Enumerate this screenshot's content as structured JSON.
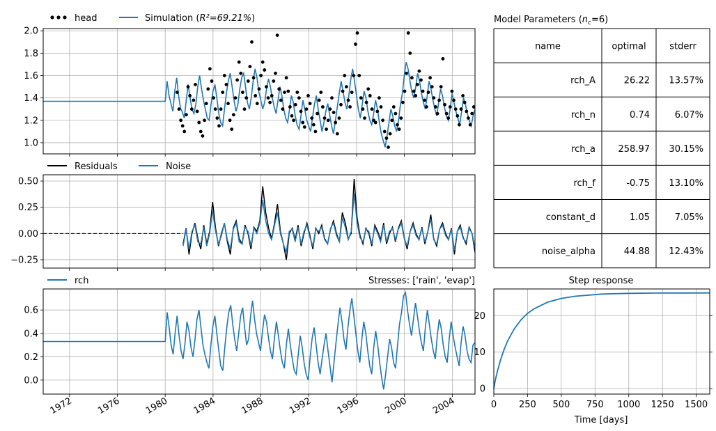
{
  "chart_data": [
    {
      "id": "head_panel",
      "type": "line",
      "legend": [
        {
          "label": "head",
          "style": "dots",
          "color": "#000000"
        },
        {
          "label_prefix": "Simulation (",
          "label_math": "R²=69.21%",
          "label_suffix": ")",
          "style": "line",
          "color": "#1f77b4"
        }
      ],
      "legend_placement": "top-left (outside)",
      "xlim": [
        1969.8,
        2005.9
      ],
      "ylim": [
        0.9,
        2.02
      ],
      "yticks": [
        1.0,
        1.2,
        1.4,
        1.6,
        1.8,
        2.0
      ],
      "ytick_labels": [
        "1.0",
        "1.2",
        "1.4",
        "1.6",
        "1.8",
        "2.0"
      ],
      "grid": true,
      "series": [
        {
          "name": "Simulation",
          "color": "#1f77b4",
          "kind": "line",
          "flat_start": [
            1969.8,
            1980.0
          ],
          "flat_value": 1.37,
          "values_x_start": 1980.0,
          "values_x_end": 2005.9,
          "values": [
            1.37,
            1.55,
            1.42,
            1.35,
            1.28,
            1.46,
            1.58,
            1.42,
            1.31,
            1.27,
            1.22,
            1.38,
            1.52,
            1.4,
            1.3,
            1.26,
            1.34,
            1.5,
            1.6,
            1.48,
            1.38,
            1.3,
            1.22,
            1.2,
            1.35,
            1.46,
            1.52,
            1.4,
            1.26,
            1.18,
            1.15,
            1.3,
            1.44,
            1.55,
            1.62,
            1.5,
            1.38,
            1.28,
            1.34,
            1.48,
            1.58,
            1.62,
            1.5,
            1.36,
            1.3,
            1.4,
            1.55,
            1.66,
            1.58,
            1.45,
            1.38,
            1.3,
            1.36,
            1.48,
            1.57,
            1.5,
            1.4,
            1.32,
            1.26,
            1.38,
            1.5,
            1.42,
            1.3,
            1.22,
            1.18,
            1.3,
            1.42,
            1.36,
            1.24,
            1.16,
            1.12,
            1.24,
            1.38,
            1.3,
            1.2,
            1.15,
            1.1,
            1.22,
            1.34,
            1.42,
            1.3,
            1.2,
            1.1,
            1.18,
            1.28,
            1.35,
            1.25,
            1.15,
            1.08,
            1.2,
            1.32,
            1.44,
            1.55,
            1.46,
            1.36,
            1.3,
            1.42,
            1.56,
            1.66,
            1.55,
            1.42,
            1.3,
            1.22,
            1.34,
            1.46,
            1.4,
            1.28,
            1.2,
            1.16,
            1.26,
            1.38,
            1.3,
            1.18,
            1.08,
            1.02,
            0.96,
            1.06,
            1.18,
            1.3,
            1.24,
            1.15,
            1.1,
            1.2,
            1.34,
            1.44,
            1.6,
            1.72,
            1.66,
            1.55,
            1.45,
            1.4,
            1.5,
            1.62,
            1.55,
            1.44,
            1.36,
            1.3,
            1.42,
            1.55,
            1.48,
            1.38,
            1.3,
            1.24,
            1.36,
            1.48,
            1.42,
            1.32,
            1.24,
            1.2,
            1.3,
            1.44,
            1.36,
            1.28,
            1.22,
            1.16,
            1.28,
            1.4,
            1.34,
            1.26,
            1.2,
            1.15,
            1.24,
            1.3
          ]
        },
        {
          "name": "head",
          "color": "#000000",
          "kind": "dots",
          "x_start": 1981.0,
          "x_end": 2005.8,
          "values": [
            1.45,
            1.3,
            1.2,
            1.15,
            1.1,
            1.25,
            1.5,
            1.42,
            1.3,
            1.38,
            1.52,
            1.28,
            1.18,
            1.1,
            1.06,
            1.2,
            1.35,
            1.48,
            1.66,
            1.55,
            1.4,
            1.3,
            1.22,
            1.15,
            1.3,
            1.45,
            1.6,
            1.52,
            1.35,
            1.2,
            1.12,
            1.25,
            1.4,
            1.56,
            1.72,
            1.62,
            1.45,
            1.3,
            1.4,
            1.55,
            1.68,
            1.9,
            1.58,
            1.42,
            1.35,
            1.48,
            1.6,
            1.72,
            1.65,
            1.5,
            1.4,
            1.36,
            1.42,
            1.55,
            1.62,
            1.96,
            1.48,
            1.38,
            1.3,
            1.45,
            1.58,
            1.46,
            1.32,
            1.24,
            1.2,
            1.34,
            1.45,
            1.4,
            1.28,
            1.18,
            1.14,
            1.3,
            1.42,
            1.35,
            1.22,
            1.16,
            1.1,
            1.26,
            1.38,
            1.45,
            1.32,
            1.22,
            1.12,
            1.2,
            1.3,
            1.4,
            1.27,
            1.18,
            1.08,
            1.22,
            1.34,
            1.46,
            1.6,
            1.5,
            1.38,
            1.32,
            1.45,
            1.6,
            1.88,
            1.98,
            1.6,
            1.4,
            1.3,
            1.22,
            1.36,
            1.48,
            1.42,
            1.3,
            1.2,
            1.18,
            1.28,
            1.4,
            1.32,
            1.2,
            1.1,
            1.04,
            0.96,
            1.08,
            1.2,
            1.32,
            1.26,
            1.16,
            1.12,
            1.22,
            1.36,
            1.46,
            1.62,
            1.98,
            1.8,
            1.58,
            1.46,
            1.42,
            1.52,
            1.64,
            1.56,
            1.46,
            1.38,
            1.32,
            1.45,
            1.58,
            1.5,
            1.4,
            1.32,
            1.26,
            1.38,
            1.5,
            1.75,
            1.34,
            1.26,
            1.22,
            1.32,
            1.46,
            1.38,
            1.3,
            1.24,
            1.16,
            1.3,
            1.42,
            1.36,
            1.28,
            1.22,
            1.16,
            1.26,
            1.32
          ]
        }
      ]
    },
    {
      "id": "residuals_panel",
      "type": "line",
      "legend": [
        {
          "label": "Residuals",
          "color": "#000000"
        },
        {
          "label": "Noise",
          "color": "#1f77b4"
        }
      ],
      "legend_placement": "top-left (outside)",
      "xlim": [
        1969.8,
        2005.9
      ],
      "ylim": [
        -0.33,
        0.56
      ],
      "yticks": [
        -0.25,
        0.0,
        0.25,
        0.5
      ],
      "ytick_labels": [
        "−0.25",
        "0.00",
        "0.25",
        "0.50"
      ],
      "grid": true,
      "zero_line": {
        "style": "dashed",
        "color": "#000000",
        "x_end": 1981.5
      },
      "series": [
        {
          "name": "Residuals",
          "color": "#000000",
          "x_start": 1981.5,
          "x_end": 2005.9,
          "values": [
            -0.1,
            0.05,
            -0.2,
            0.0,
            0.1,
            -0.05,
            -0.15,
            0.08,
            -0.1,
            0.02,
            0.3,
            0.05,
            -0.12,
            0.0,
            0.1,
            -0.08,
            -0.2,
            0.05,
            0.12,
            -0.05,
            -0.1,
            0.08,
            0.0,
            -0.15,
            0.06,
            0.02,
            0.12,
            0.45,
            0.2,
            0.05,
            -0.05,
            0.1,
            0.28,
            0.02,
            -0.1,
            -0.25,
            0.0,
            0.05,
            -0.06,
            0.08,
            -0.12,
            0.0,
            0.1,
            -0.02,
            -0.15,
            0.05,
            0.0,
            0.08,
            -0.05,
            -0.1,
            0.04,
            0.12,
            0.0,
            -0.08,
            0.2,
            0.1,
            -0.05,
            0.0,
            0.52,
            0.15,
            -0.02,
            -0.1,
            0.05,
            0.0,
            -0.12,
            0.08,
            0.02,
            -0.06,
            0.1,
            -0.1,
            0.0,
            0.06,
            -0.08,
            0.05,
            0.12,
            -0.04,
            -0.15,
            0.02,
            0.1,
            0.0,
            -0.06,
            0.06,
            -0.1,
            0.02,
            0.18,
            -0.05,
            -0.12,
            0.04,
            0.1,
            0.0,
            -0.06,
            0.05,
            -0.2,
            0.02,
            0.08,
            -0.04,
            -0.1,
            0.06,
            0.0,
            -0.18
          ]
        },
        {
          "name": "Noise",
          "color": "#1f77b4",
          "x_start": 1981.5,
          "x_end": 2005.9,
          "values": [
            -0.12,
            0.04,
            -0.15,
            0.02,
            0.08,
            -0.08,
            -0.1,
            0.06,
            -0.12,
            0.0,
            0.22,
            0.02,
            -0.1,
            -0.02,
            0.1,
            -0.06,
            -0.15,
            0.04,
            0.1,
            -0.08,
            -0.1,
            0.06,
            0.02,
            -0.12,
            0.05,
            0.0,
            0.1,
            0.32,
            0.12,
            0.0,
            -0.06,
            0.08,
            0.2,
            0.0,
            -0.1,
            -0.18,
            0.02,
            0.04,
            -0.08,
            0.06,
            -0.1,
            0.02,
            0.08,
            -0.04,
            -0.12,
            0.04,
            0.02,
            0.06,
            -0.06,
            -0.1,
            0.05,
            0.1,
            -0.02,
            -0.08,
            0.15,
            0.06,
            -0.06,
            0.02,
            0.38,
            0.1,
            -0.04,
            -0.08,
            0.04,
            0.02,
            -0.1,
            0.06,
            0.0,
            -0.08,
            0.08,
            -0.08,
            0.02,
            0.05,
            -0.06,
            0.04,
            0.1,
            -0.05,
            -0.12,
            0.02,
            0.08,
            -0.02,
            -0.06,
            0.05,
            -0.08,
            0.02,
            0.14,
            -0.06,
            -0.1,
            0.04,
            0.08,
            -0.02,
            -0.06,
            0.04,
            -0.16,
            0.02,
            0.06,
            -0.05,
            -0.08,
            0.05,
            0.0,
            -0.14
          ]
        }
      ]
    },
    {
      "id": "stress_panel",
      "type": "line",
      "legend": [
        {
          "label": "rch",
          "color": "#1f77b4"
        }
      ],
      "legend_placement": "top-left (outside)",
      "right_title": "Stresses: ['rain', 'evap']",
      "xlim": [
        1969.8,
        2005.9
      ],
      "ylim": [
        -0.12,
        0.78
      ],
      "yticks": [
        0.0,
        0.2,
        0.4,
        0.6
      ],
      "ytick_labels": [
        "0.0",
        "0.2",
        "0.4",
        "0.6"
      ],
      "xticks": [
        1972,
        1976,
        1980,
        1984,
        1988,
        1992,
        1996,
        2000,
        2004
      ],
      "xtick_labels": [
        "1972",
        "1976",
        "1980",
        "1984",
        "1988",
        "1992",
        "1996",
        "2000",
        "2004"
      ],
      "grid": true,
      "series": [
        {
          "name": "rch",
          "color": "#1f77b4",
          "flat_start": [
            1969.8,
            1980.0
          ],
          "flat_value": 0.33,
          "values_x_start": 1980.0,
          "values_x_end": 2005.9,
          "values": [
            0.33,
            0.58,
            0.45,
            0.3,
            0.22,
            0.4,
            0.55,
            0.38,
            0.25,
            0.18,
            0.32,
            0.5,
            0.42,
            0.28,
            0.2,
            0.35,
            0.52,
            0.6,
            0.45,
            0.3,
            0.22,
            0.15,
            0.1,
            0.3,
            0.46,
            0.55,
            0.4,
            0.25,
            0.12,
            0.08,
            0.28,
            0.45,
            0.58,
            0.64,
            0.48,
            0.35,
            0.25,
            0.4,
            0.55,
            0.62,
            0.45,
            0.3,
            0.35,
            0.55,
            0.68,
            0.52,
            0.4,
            0.32,
            0.25,
            0.42,
            0.56,
            0.5,
            0.36,
            0.25,
            0.18,
            0.36,
            0.5,
            0.38,
            0.25,
            0.15,
            0.1,
            0.3,
            0.44,
            0.3,
            0.18,
            0.08,
            0.05,
            0.22,
            0.38,
            0.28,
            0.14,
            0.05,
            0.0,
            0.2,
            0.36,
            0.45,
            0.3,
            0.15,
            0.05,
            0.18,
            0.3,
            0.4,
            0.25,
            0.12,
            -0.02,
            0.15,
            0.32,
            0.48,
            0.62,
            0.5,
            0.35,
            0.26,
            0.45,
            0.6,
            0.7,
            0.55,
            0.4,
            0.25,
            0.15,
            0.35,
            0.5,
            0.4,
            0.25,
            0.12,
            0.05,
            0.28,
            0.42,
            0.3,
            0.15,
            0.02,
            -0.08,
            0.05,
            0.2,
            0.35,
            0.28,
            0.15,
            0.1,
            0.3,
            0.48,
            0.58,
            0.72,
            0.75,
            0.6,
            0.48,
            0.38,
            0.52,
            0.66,
            0.55,
            0.42,
            0.32,
            0.25,
            0.45,
            0.6,
            0.48,
            0.35,
            0.25,
            0.18,
            0.38,
            0.52,
            0.44,
            0.3,
            0.2,
            0.15,
            0.35,
            0.5,
            0.38,
            0.28,
            0.2,
            0.12,
            0.32,
            0.46,
            0.38,
            0.25,
            0.18,
            0.15,
            0.3,
            0.32
          ]
        }
      ]
    },
    {
      "id": "params_table",
      "type": "table",
      "title_prefix": "Model Parameters (",
      "title_math": "n",
      "title_sub": "c",
      "title_suffix": "=6)",
      "columns": [
        "name",
        "optimal",
        "stderr"
      ],
      "rows": [
        [
          "rch_A",
          "26.22",
          "13.57%"
        ],
        [
          "rch_n",
          "0.74",
          "6.07%"
        ],
        [
          "rch_a",
          "258.97",
          "30.15%"
        ],
        [
          "rch_f",
          "-0.75",
          "13.10%"
        ],
        [
          "constant_d",
          "1.05",
          "7.05%"
        ],
        [
          "noise_alpha",
          "44.88",
          "12.43%"
        ]
      ]
    },
    {
      "id": "step_response",
      "type": "line",
      "title": "Step response",
      "xlabel": "Time [days]",
      "xlim": [
        0,
        1600
      ],
      "ylim": [
        -1.5,
        27.3
      ],
      "xticks": [
        0,
        250,
        500,
        750,
        1000,
        1250,
        1500
      ],
      "xtick_labels": [
        "0",
        "250",
        "500",
        "750",
        "1000",
        "1250",
        "1500"
      ],
      "yticks": [
        0,
        10,
        20
      ],
      "ytick_labels": [
        "0",
        "10",
        "20"
      ],
      "grid": true,
      "curve": {
        "A": 26.22,
        "n": 0.74,
        "a": 258.97
      },
      "series": [
        {
          "name": "step",
          "color": "#1f77b4",
          "x": [
            0,
            10,
            25,
            50,
            75,
            100,
            150,
            200,
            250,
            300,
            400,
            500,
            600,
            800,
            1000,
            1200,
            1400,
            1600
          ],
          "values": [
            0,
            2.1,
            4.5,
            7.9,
            10.6,
            12.9,
            16.3,
            18.8,
            20.6,
            21.9,
            23.7,
            24.7,
            25.3,
            25.9,
            26.1,
            26.17,
            26.2,
            26.21
          ]
        }
      ]
    }
  ]
}
